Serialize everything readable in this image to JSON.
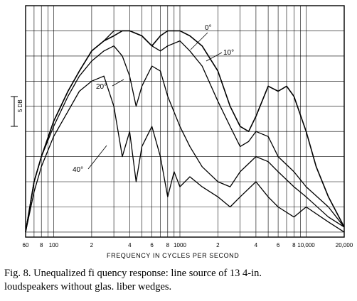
{
  "chart_data": {
    "type": "line",
    "xlabel": "FREQUENCY IN CYCLES PER SECOND",
    "xscale": "log",
    "xlim": [
      60,
      20000
    ],
    "x_ticks": [
      "60",
      "8",
      "100",
      "2",
      "4",
      "6",
      "8",
      "1000",
      "2",
      "4",
      "6",
      "8",
      "10,000",
      "20,000"
    ],
    "scale_marker": "5 DB",
    "grid": true,
    "series": [
      {
        "name": "0°",
        "x": [
          60,
          70,
          80,
          100,
          130,
          160,
          200,
          250,
          300,
          350,
          400,
          500,
          600,
          700,
          800,
          1000,
          1200,
          1500,
          2000,
          2500,
          3000,
          3500,
          4000,
          5000,
          6000,
          7000,
          8000,
          10000,
          12000,
          15000,
          20000
        ],
        "y": [
          -45,
          -35,
          -30,
          -23,
          -17,
          -13,
          -9,
          -7,
          -6,
          -5,
          -5,
          -6,
          -8,
          -6,
          -5,
          -5,
          -6,
          -8,
          -13,
          -20,
          -24,
          -25,
          -22,
          -16,
          -17,
          -16,
          -18,
          -25,
          -32,
          -38,
          -44
        ]
      },
      {
        "name": "10°",
        "x": [
          60,
          70,
          80,
          100,
          130,
          160,
          200,
          250,
          300,
          400,
          500,
          600,
          700,
          800,
          1000,
          1200,
          1500,
          2000,
          2500,
          3000,
          3500,
          4000,
          5000,
          6000,
          8000,
          10000,
          15000,
          20000
        ],
        "y": [
          -45,
          -35,
          -30,
          -23,
          -17,
          -13,
          -9,
          -7,
          -5,
          -5,
          -6,
          -8,
          -9,
          -8,
          -7,
          -9,
          -12,
          -19,
          -24,
          -28,
          -27,
          -25,
          -26,
          -30,
          -33,
          -36,
          -40,
          -44
        ]
      },
      {
        "name": "20°",
        "x": [
          60,
          70,
          80,
          100,
          130,
          160,
          200,
          250,
          300,
          350,
          400,
          450,
          500,
          600,
          700,
          800,
          1000,
          1200,
          1500,
          2000,
          2500,
          3000,
          4000,
          5000,
          6000,
          8000,
          10000,
          15000,
          20000
        ],
        "y": [
          -45,
          -35,
          -30,
          -24,
          -18,
          -14,
          -11,
          -9,
          -8,
          -10,
          -14,
          -20,
          -16,
          -12,
          -13,
          -18,
          -24,
          -28,
          -32,
          -35,
          -36,
          -33,
          -30,
          -31,
          -33,
          -36,
          -38,
          -42,
          -44
        ]
      },
      {
        "name": "40°",
        "x": [
          60,
          70,
          80,
          100,
          130,
          160,
          200,
          250,
          300,
          350,
          400,
          450,
          500,
          600,
          700,
          800,
          900,
          1000,
          1200,
          1500,
          2000,
          2500,
          3000,
          4000,
          5000,
          6000,
          8000,
          10000,
          15000,
          20000
        ],
        "y": [
          -45,
          -37,
          -32,
          -26,
          -21,
          -17,
          -15,
          -14,
          -20,
          -30,
          -25,
          -35,
          -28,
          -24,
          -30,
          -38,
          -33,
          -36,
          -34,
          -36,
          -38,
          -40,
          -38,
          -35,
          -38,
          -40,
          -42,
          -40,
          -43,
          -45
        ]
      }
    ],
    "annotations": [
      "0°",
      "10°",
      "20°",
      "40°"
    ]
  },
  "caption": {
    "line1": "Fig. 8. Unequalized fi quency response: line source of 13 4-in.",
    "line2": "loudspeakers without glas. liber wedges."
  }
}
